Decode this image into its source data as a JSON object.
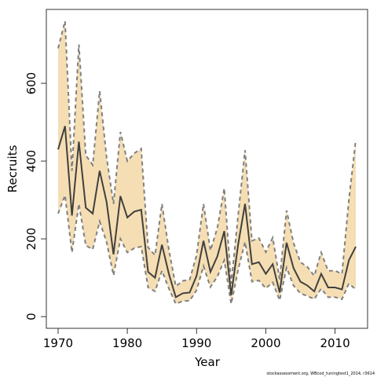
{
  "chart_data": {
    "type": "line",
    "title": "",
    "xlabel": "Year",
    "ylabel": "Recruits",
    "xlim": [
      1968.3,
      2014.7
    ],
    "ylim": [
      -30,
      790
    ],
    "xticks": [
      1970,
      1980,
      1990,
      2000,
      2010
    ],
    "yticks": [
      0,
      200,
      400,
      600
    ],
    "grid": false,
    "colors": {
      "band": "#f5deb3",
      "bound": "#808080",
      "estimate": "#404040"
    },
    "x": [
      1970,
      1971,
      1972,
      1973,
      1974,
      1975,
      1976,
      1977,
      1978,
      1979,
      1980,
      1981,
      1982,
      1983,
      1984,
      1985,
      1986,
      1987,
      1988,
      1989,
      1990,
      1991,
      1992,
      1993,
      1994,
      1995,
      1996,
      1997,
      1998,
      1999,
      2000,
      2001,
      2002,
      2003,
      2004,
      2005,
      2006,
      2007,
      2008,
      2009,
      2010,
      2011,
      2012,
      2013
    ],
    "series": [
      {
        "role": "estimate",
        "values": [
          430,
          490,
          260,
          450,
          280,
          265,
          375,
          295,
          160,
          310,
          255,
          270,
          275,
          115,
          100,
          185,
          110,
          50,
          60,
          62,
          105,
          195,
          115,
          155,
          220,
          55,
          185,
          290,
          135,
          140,
          110,
          135,
          62,
          190,
          125,
          90,
          80,
          65,
          110,
          75,
          75,
          70,
          145,
          180
        ]
      },
      {
        "role": "upper",
        "values": [
          690,
          760,
          375,
          700,
          415,
          390,
          580,
          410,
          290,
          475,
          400,
          420,
          432,
          178,
          158,
          290,
          172,
          78,
          92,
          95,
          158,
          290,
          170,
          228,
          330,
          85,
          260,
          428,
          195,
          202,
          166,
          203,
          96,
          273,
          190,
          140,
          128,
          105,
          165,
          118,
          118,
          110,
          300,
          455
        ]
      },
      {
        "role": "lower",
        "values": [
          265,
          312,
          165,
          290,
          183,
          173,
          245,
          192,
          106,
          200,
          165,
          176,
          180,
          75,
          65,
          118,
          72,
          33,
          40,
          41,
          68,
          130,
          76,
          103,
          145,
          33,
          120,
          192,
          90,
          93,
          73,
          88,
          42,
          126,
          80,
          60,
          53,
          45,
          72,
          50,
          50,
          45,
          85,
          70
        ]
      }
    ],
    "footnote": "stockassessment.org, WBcod_tuningtest1_2014, r3614"
  }
}
